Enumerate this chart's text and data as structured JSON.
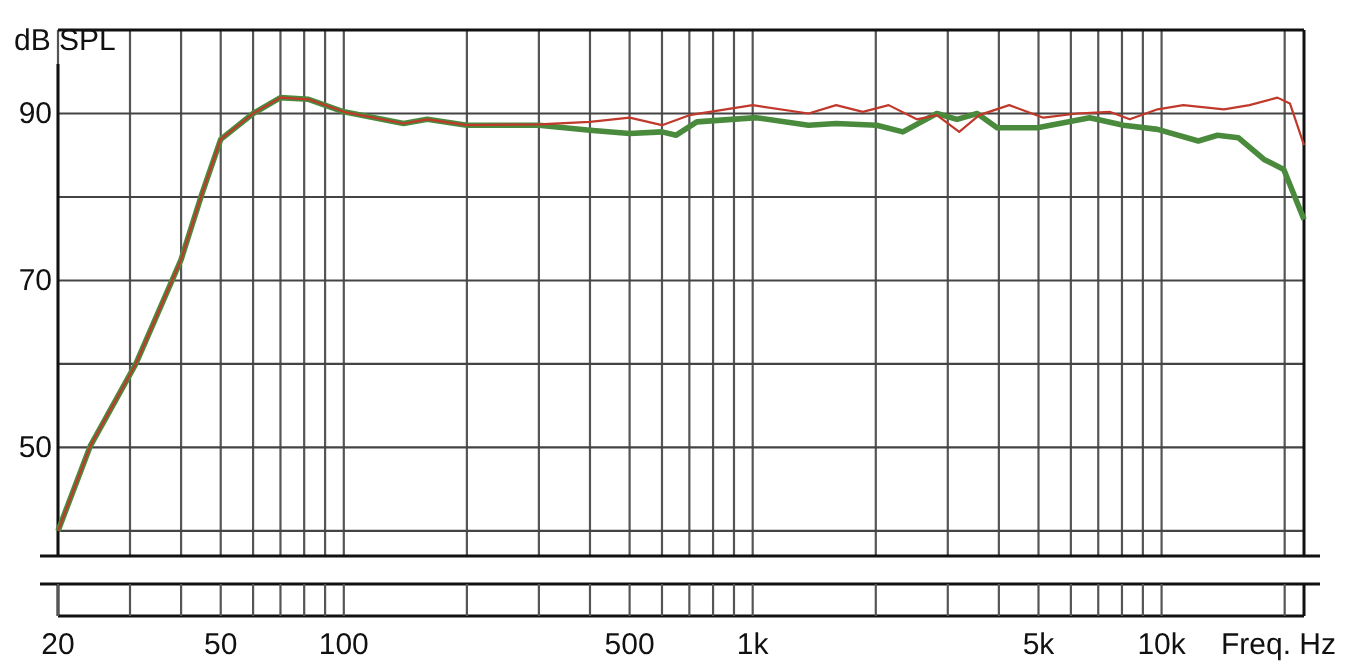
{
  "chart_data": {
    "type": "line",
    "xlabel": "Freq. Hz",
    "ylabel": "dB SPL",
    "log": "x",
    "grid": true,
    "marker": "none",
    "line_style": "solid",
    "xlim": [
      20,
      22300
    ],
    "ylim": [
      37,
      100
    ],
    "xticks": [
      20,
      {
        "value": 30,
        "label": null
      },
      {
        "value": 40,
        "label": null
      },
      50,
      {
        "value": 60,
        "label": null
      },
      {
        "value": 70,
        "label": null
      },
      {
        "value": 80,
        "label": null
      },
      {
        "value": 90,
        "label": null
      },
      100,
      {
        "value": 200,
        "label": null
      },
      {
        "value": 300,
        "label": null
      },
      {
        "value": 400,
        "label": null
      },
      500,
      {
        "value": 600,
        "label": null
      },
      {
        "value": 700,
        "label": null
      },
      {
        "value": 800,
        "label": null
      },
      {
        "value": 900,
        "label": null
      },
      {
        "value": 1000,
        "label": "1k"
      },
      {
        "value": 2000,
        "label": null
      },
      {
        "value": 3000,
        "label": null
      },
      {
        "value": 4000,
        "label": null
      },
      {
        "value": 5000,
        "label": "5k"
      },
      {
        "value": 6000,
        "label": null
      },
      {
        "value": 7000,
        "label": null
      },
      {
        "value": 8000,
        "label": null
      },
      {
        "value": 9000,
        "label": null
      },
      {
        "value": 10000,
        "label": "10k"
      },
      {
        "value": 20000,
        "label": null
      }
    ],
    "yticks": [
      {
        "value": 40,
        "label": null
      },
      50,
      {
        "value": 60,
        "label": null
      },
      70,
      {
        "value": 80,
        "label": null
      },
      90
    ],
    "series": [
      {
        "color": "#c0392b",
        "x": [
          20,
          24,
          31,
          40,
          45,
          50,
          60,
          70,
          82,
          100,
          140,
          160,
          200,
          300,
          400,
          500,
          600,
          700,
          1000,
          1370,
          1600,
          1860,
          2150,
          2520,
          2820,
          3200,
          3580,
          4240,
          5140,
          6220,
          7460,
          8360,
          9780,
          11300,
          14200,
          16400,
          19200,
          20600,
          22300
        ],
        "values": [
          40,
          50.2,
          60,
          72.5,
          80.4,
          86.9,
          90,
          91.9,
          91.7,
          90.2,
          88.8,
          89.3,
          88.6,
          88.7,
          89,
          89.5,
          88.6,
          89.8,
          91,
          90,
          91,
          90.2,
          91,
          89.3,
          89.8,
          87.8,
          89.8,
          91,
          89.5,
          90,
          90.2,
          89.3,
          90.5,
          91,
          90.5,
          91,
          91.9,
          91.2,
          86.2
        ]
      },
      {
        "color": "#4a8a3c",
        "x": [
          20,
          24,
          31,
          40,
          45,
          50,
          60,
          70,
          82,
          100,
          140,
          160,
          200,
          300,
          400,
          500,
          600,
          650,
          730,
          1020,
          1370,
          1600,
          2010,
          2330,
          2820,
          3160,
          3540,
          3960,
          4970,
          6670,
          8070,
          9780,
          12300,
          13700,
          15400,
          17800,
          19900,
          22300
        ],
        "values": [
          40,
          50.2,
          60,
          72.5,
          80.4,
          86.9,
          90,
          91.9,
          91.7,
          90.2,
          88.8,
          89.3,
          88.6,
          88.6,
          88,
          87.6,
          87.8,
          87.4,
          89,
          89.5,
          88.6,
          88.8,
          88.6,
          87.8,
          90,
          89.3,
          90,
          88.3,
          88.3,
          89.5,
          88.6,
          88.1,
          86.7,
          87.4,
          87.1,
          84.5,
          83.3,
          77.3
        ]
      }
    ]
  }
}
